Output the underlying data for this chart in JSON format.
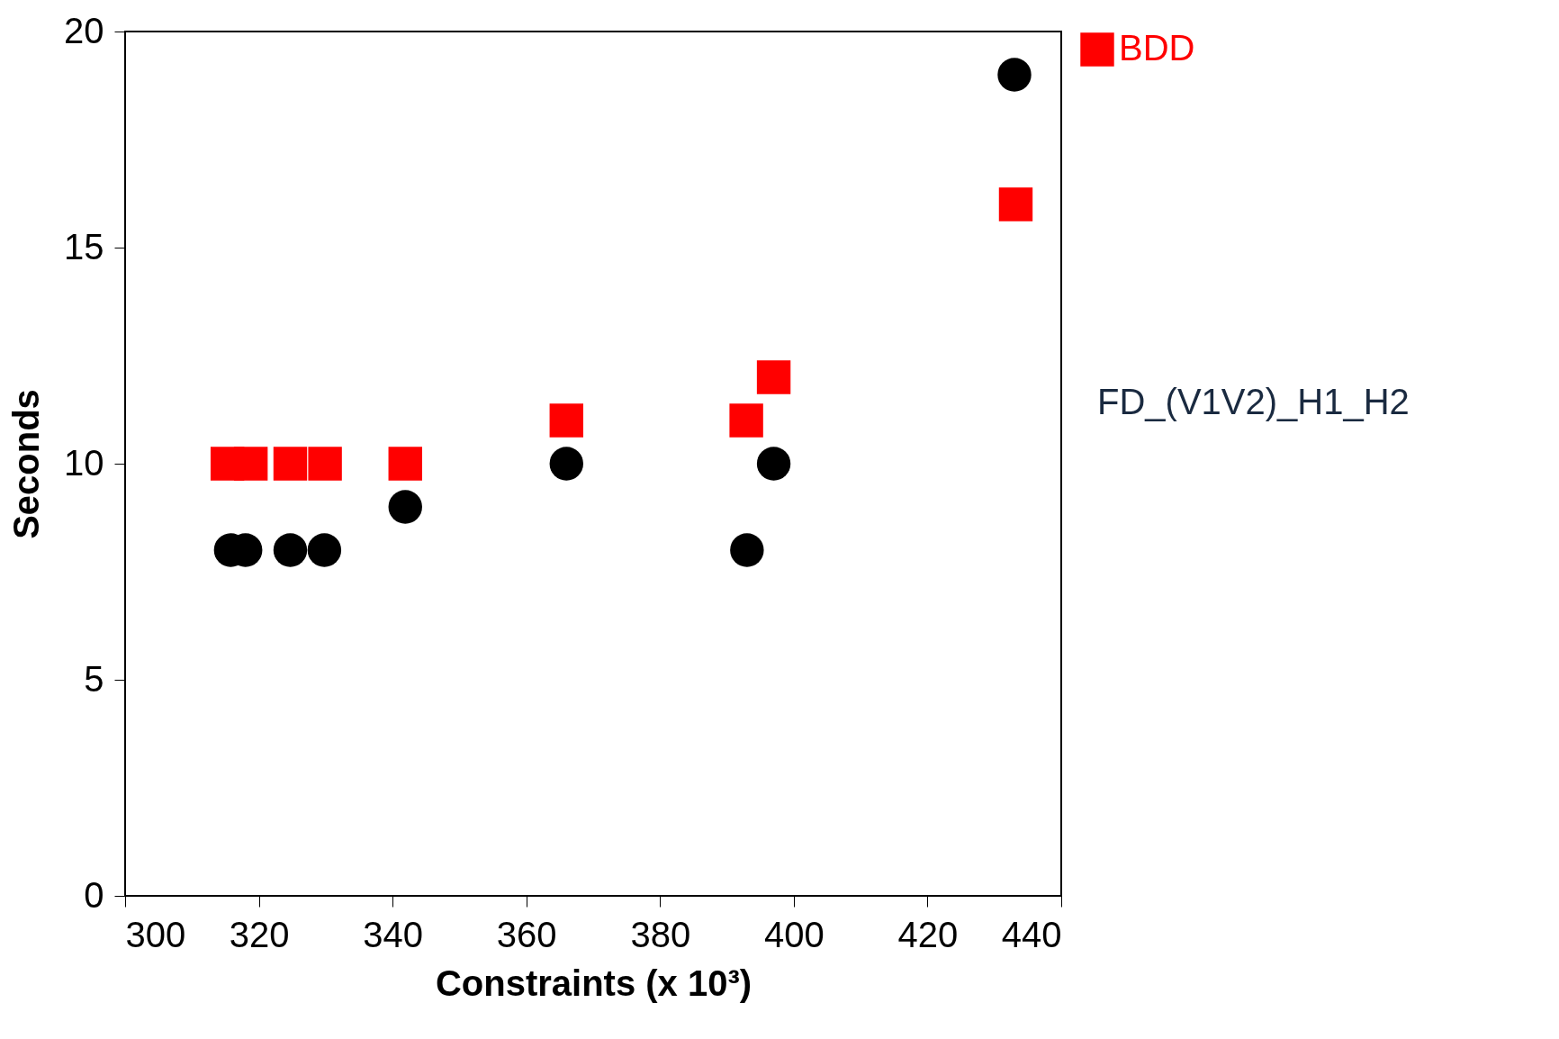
{
  "chart_data": {
    "type": "scatter",
    "xlabel": "Constraints (x 10³)",
    "ylabel": "Seconds",
    "xlim": [
      300,
      440
    ],
    "xticks": [
      300,
      320,
      340,
      360,
      380,
      400,
      420,
      440
    ],
    "ylim": [
      0,
      20
    ],
    "yticks": [
      0,
      5,
      10,
      15,
      20
    ],
    "grid": false,
    "legend": "top right",
    "series": [
      {
        "name": "BDD",
        "color": "#ff0000",
        "marker": "square",
        "x": [
          315.3,
          318.8,
          324.7,
          329.9,
          341.9,
          366,
          392.9,
          397,
          433.2
        ],
        "values": [
          10,
          10,
          10,
          10,
          10,
          11,
          11,
          12,
          16
        ]
      },
      {
        "color": "#000000",
        "marker": "circle",
        "x": [
          315.8,
          318.0,
          324.7,
          329.8,
          341.9,
          366,
          393,
          397,
          433
        ],
        "values": [
          8,
          8,
          8,
          8,
          9,
          10,
          8,
          10,
          19
        ]
      }
    ],
    "annotations": [
      "FD_(V1V2)_H1_H2"
    ]
  }
}
